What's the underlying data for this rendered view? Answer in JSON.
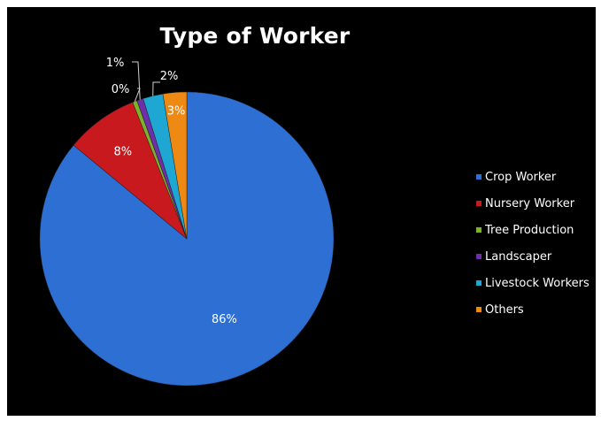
{
  "chart_data": {
    "type": "pie",
    "title": "Type of Worker",
    "legend_position": "right",
    "slices": [
      {
        "label": "Crop Worker",
        "value": 86,
        "display": "86%",
        "color": "#2E6FD4"
      },
      {
        "label": "Nursery Worker",
        "value": 8,
        "display": "8%",
        "color": "#C8191F"
      },
      {
        "label": "Tree Production",
        "value": 0.5,
        "display": "0%",
        "color": "#7CB32A"
      },
      {
        "label": "Landscaper",
        "value": 0.7,
        "display": "1%",
        "color": "#6E2FA8"
      },
      {
        "label": "Livestock Workers",
        "value": 2.2,
        "display": "2%",
        "color": "#1FA7D4"
      },
      {
        "label": "Others",
        "value": 2.6,
        "display": "3%",
        "color": "#EE8A13"
      }
    ]
  }
}
